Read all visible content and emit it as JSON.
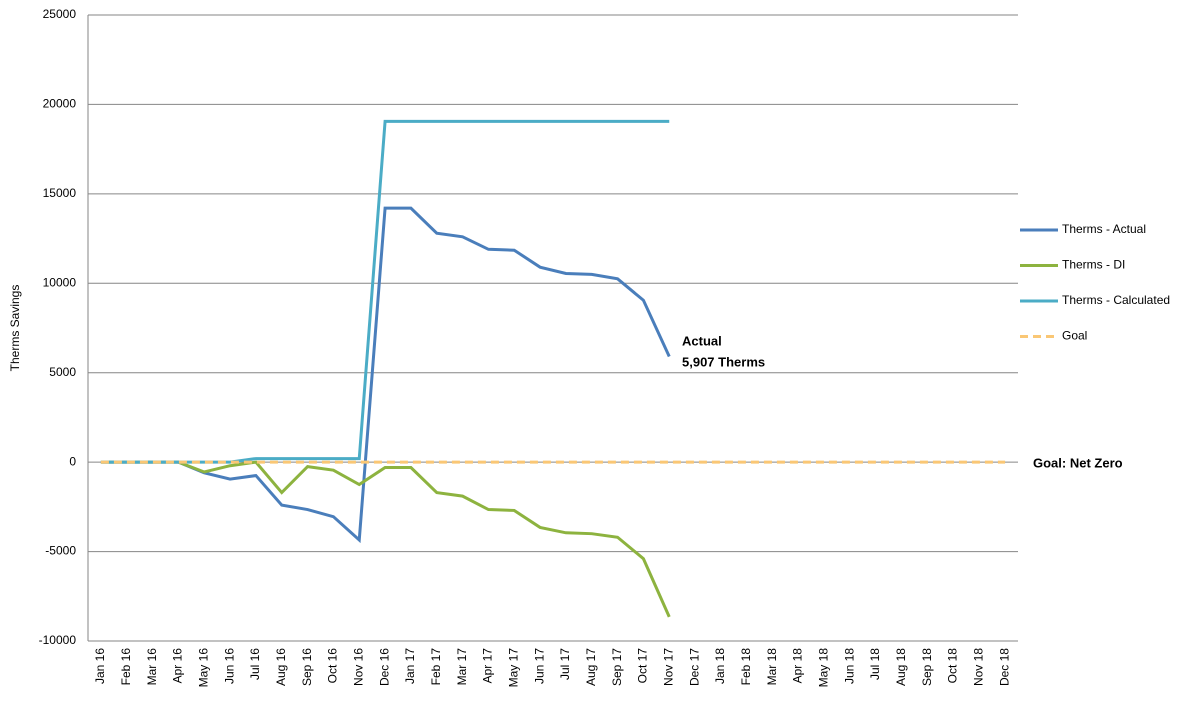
{
  "chart_data": {
    "type": "line",
    "y_label": "Therms Savings",
    "categories": [
      "Jan 16",
      "Feb 16",
      "Mar 16",
      "Apr 16",
      "May 16",
      "Jun 16",
      "Jul 16",
      "Aug 16",
      "Sep 16",
      "Oct 16",
      "Nov 16",
      "Dec 16",
      "Jan 17",
      "Feb 17",
      "Mar 17",
      "Apr 17",
      "May 17",
      "Jun 17",
      "Jul 17",
      "Aug 17",
      "Sep 17",
      "Oct 17",
      "Nov 17",
      "Dec 17",
      "Jan 18",
      "Feb 18",
      "Mar 18",
      "Apr 18",
      "May 18",
      "Jun 18",
      "Jul 18",
      "Aug 18",
      "Sep 18",
      "Oct 18",
      "Nov 18",
      "Dec 18"
    ],
    "series": [
      {
        "name": "Therms - Actual",
        "color": "#4a7ebb",
        "values": [
          0,
          0,
          0,
          0,
          -600,
          -950,
          -750,
          -2400,
          -2650,
          -3050,
          -4350,
          14200,
          14200,
          12800,
          12600,
          11900,
          11850,
          10900,
          10550,
          10500,
          10250,
          9050,
          5907,
          null,
          null,
          null,
          null,
          null,
          null,
          null,
          null,
          null,
          null,
          null,
          null,
          null
        ]
      },
      {
        "name": "Therms - DI",
        "color": "#8db33f",
        "values": [
          0,
          0,
          0,
          0,
          -550,
          -200,
          0,
          -1700,
          -250,
          -450,
          -1250,
          -300,
          -300,
          -1700,
          -1900,
          -2650,
          -2700,
          -3650,
          -3950,
          -4000,
          -4200,
          -5400,
          -8650,
          null,
          null,
          null,
          null,
          null,
          null,
          null,
          null,
          null,
          null,
          null,
          null,
          null
        ]
      },
      {
        "name": "Therms - Calculated",
        "color": "#4bacc6",
        "values": [
          0,
          0,
          0,
          0,
          0,
          0,
          200,
          200,
          200,
          200,
          200,
          19050,
          19050,
          19050,
          19050,
          19050,
          19050,
          19050,
          19050,
          19050,
          19050,
          19050,
          19050,
          null,
          null,
          null,
          null,
          null,
          null,
          null,
          null,
          null,
          null,
          null,
          null,
          null
        ]
      },
      {
        "name": "Goal",
        "color": "#fac775",
        "dashed": true,
        "values": [
          0,
          0,
          0,
          0,
          0,
          0,
          0,
          0,
          0,
          0,
          0,
          0,
          0,
          0,
          0,
          0,
          0,
          0,
          0,
          0,
          0,
          0,
          0,
          0,
          0,
          0,
          0,
          0,
          0,
          0,
          0,
          0,
          0,
          0,
          0,
          0
        ]
      }
    ],
    "ylim": [
      -10000,
      25000
    ],
    "yticks": [
      -10000,
      -5000,
      0,
      5000,
      10000,
      15000,
      20000,
      25000
    ],
    "grid": true,
    "legend": "right",
    "annotations": [
      "Actual",
      "5,907 Therms",
      "Goal: Net Zero"
    ]
  }
}
